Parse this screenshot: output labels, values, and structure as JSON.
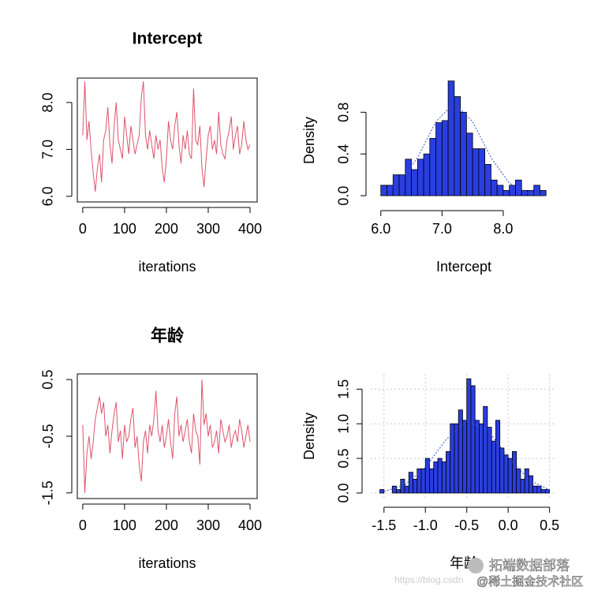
{
  "chart_data": [
    {
      "type": "line",
      "title": "Intercept",
      "x_label": "iterations",
      "color": "#DF536B",
      "x": [
        0,
        5,
        10,
        15,
        20,
        25,
        30,
        35,
        40,
        45,
        50,
        55,
        60,
        65,
        70,
        75,
        80,
        85,
        90,
        95,
        100,
        105,
        110,
        115,
        120,
        125,
        130,
        135,
        140,
        145,
        150,
        155,
        160,
        165,
        170,
        175,
        180,
        185,
        190,
        195,
        200,
        205,
        210,
        215,
        220,
        225,
        230,
        235,
        240,
        245,
        250,
        255,
        260,
        265,
        270,
        275,
        280,
        285,
        290,
        295,
        300,
        305,
        310,
        315,
        320,
        325,
        330,
        335,
        340,
        345,
        350,
        355,
        360,
        365,
        370,
        375,
        380,
        385,
        390,
        395,
        400
      ],
      "values": [
        7.3,
        8.45,
        7.2,
        7.6,
        7.0,
        6.5,
        6.1,
        6.6,
        6.9,
        6.3,
        7.2,
        7.4,
        7.9,
        7.1,
        6.7,
        7.5,
        8.0,
        7.2,
        7.0,
        6.8,
        7.7,
        7.3,
        6.9,
        7.5,
        7.2,
        6.9,
        7.1,
        7.3,
        8.1,
        8.45,
        7.3,
        7.0,
        7.4,
        7.1,
        6.8,
        7.3,
        7.0,
        7.2,
        6.6,
        6.3,
        6.8,
        7.6,
        7.2,
        7.0,
        7.5,
        7.8,
        7.1,
        6.7,
        7.3,
        7.0,
        7.4,
        6.9,
        6.8,
        8.3,
        7.2,
        7.1,
        7.5,
        6.6,
        6.2,
        6.8,
        7.3,
        7.5,
        7.0,
        7.2,
        6.9,
        7.8,
        7.1,
        6.9,
        6.8,
        7.2,
        7.4,
        7.7,
        7.0,
        7.3,
        7.5,
        6.9,
        7.1,
        7.6,
        7.2,
        7.0,
        7.1
      ],
      "xlim": [
        -13,
        417
      ],
      "ylim": [
        5.88,
        8.52
      ],
      "xticks": [
        0,
        100,
        200,
        300,
        400
      ],
      "yticks": [
        {
          "value": 6,
          "label": "6.0"
        },
        {
          "value": 7,
          "label": "7.0"
        },
        {
          "value": 8,
          "label": "8.0"
        }
      ]
    },
    {
      "type": "histogram",
      "x_label": "Intercept",
      "y_label": "Density",
      "color": "#2a3de0",
      "bins": [
        6.0,
        6.1,
        6.2,
        6.3,
        6.4,
        6.5,
        6.6,
        6.7,
        6.8,
        6.9,
        7.0,
        7.1,
        7.2,
        7.3,
        7.4,
        7.5,
        7.6,
        7.7,
        7.8,
        7.9,
        8.0,
        8.1,
        8.2,
        8.3,
        8.4,
        8.5,
        8.6,
        8.7
      ],
      "values": [
        0.1,
        0.1,
        0.2,
        0.2,
        0.35,
        0.25,
        0.35,
        0.4,
        0.55,
        0.7,
        0.72,
        1.1,
        0.95,
        0.8,
        0.6,
        0.45,
        0.45,
        0.3,
        0.15,
        0.1,
        0.05,
        0.1,
        0.15,
        0.05,
        0.05,
        0.1,
        0.05
      ],
      "density_curve": {
        "color": "#3050c8",
        "x": [
          6.0,
          6.3,
          6.6,
          6.9,
          7.2,
          7.5,
          7.8,
          8.1,
          8.4,
          8.7
        ],
        "y": [
          0.025,
          0.12,
          0.365,
          0.71,
          0.887,
          0.71,
          0.365,
          0.12,
          0.025,
          0.003
        ]
      },
      "xlim": [
        5.9,
        8.8
      ],
      "ylim": [
        -0.06,
        1.12
      ],
      "xticks": [
        {
          "value": 6,
          "label": "6.0"
        },
        {
          "value": 7,
          "label": "7.0"
        },
        {
          "value": 8,
          "label": "8.0"
        }
      ],
      "yticks": [
        {
          "value": 0,
          "label": "0.0"
        },
        0.4,
        0.8
      ],
      "grid": false
    },
    {
      "type": "line",
      "title": "年龄",
      "x_label": "iterations",
      "color": "#DF536B",
      "x": [
        0,
        5,
        10,
        15,
        20,
        25,
        30,
        35,
        40,
        45,
        50,
        55,
        60,
        65,
        70,
        75,
        80,
        85,
        90,
        95,
        100,
        105,
        110,
        115,
        120,
        125,
        130,
        135,
        140,
        145,
        150,
        155,
        160,
        165,
        170,
        175,
        180,
        185,
        190,
        195,
        200,
        205,
        210,
        215,
        220,
        225,
        230,
        235,
        240,
        245,
        250,
        255,
        260,
        265,
        270,
        275,
        280,
        285,
        290,
        295,
        300,
        305,
        310,
        315,
        320,
        325,
        330,
        335,
        340,
        345,
        350,
        355,
        360,
        365,
        370,
        375,
        380,
        385,
        390,
        395,
        400
      ],
      "values": [
        -0.3,
        -1.5,
        -0.8,
        -0.5,
        -0.9,
        -0.6,
        -0.2,
        0.0,
        0.2,
        -0.1,
        0.1,
        -0.5,
        -0.3,
        -0.8,
        -0.4,
        -0.1,
        0.1,
        -0.6,
        -0.4,
        -0.9,
        -0.3,
        -0.6,
        -0.5,
        -0.2,
        0.0,
        -0.7,
        -0.5,
        -1.0,
        -1.3,
        -0.6,
        -0.4,
        -0.8,
        -0.3,
        -0.5,
        -0.2,
        0.3,
        -0.4,
        -0.6,
        -0.3,
        -0.7,
        -0.5,
        -0.2,
        -0.6,
        -0.9,
        -0.1,
        0.2,
        -0.5,
        -0.3,
        -0.6,
        -0.4,
        -0.2,
        -0.6,
        -0.8,
        -0.1,
        -0.4,
        -0.5,
        -1.0,
        0.5,
        -0.3,
        -0.1,
        -0.5,
        -0.3,
        -0.7,
        -0.6,
        -0.4,
        -0.8,
        -0.2,
        -0.4,
        -0.6,
        -0.5,
        -0.3,
        -0.7,
        -0.5,
        -0.4,
        -0.6,
        -0.2,
        -0.4,
        -0.7,
        -0.5,
        -0.3,
        -0.6
      ],
      "xlim": [
        -13,
        417
      ],
      "ylim": [
        -1.6,
        0.6
      ],
      "xticks": [
        0,
        100,
        200,
        300,
        400
      ],
      "yticks": [
        -1.5,
        -0.5,
        0.5
      ]
    },
    {
      "type": "histogram",
      "x_label": "年龄",
      "y_label": "Density",
      "color": "#2a3de0",
      "bins": [
        -1.55,
        -1.5,
        -1.45,
        -1.4,
        -1.35,
        -1.3,
        -1.25,
        -1.2,
        -1.15,
        -1.1,
        -1.05,
        -1.0,
        -0.95,
        -0.9,
        -0.85,
        -0.8,
        -0.75,
        -0.7,
        -0.65,
        -0.6,
        -0.55,
        -0.5,
        -0.45,
        -0.4,
        -0.35,
        -0.3,
        -0.25,
        -0.2,
        -0.15,
        -0.1,
        -0.05,
        0.0,
        0.05,
        0.1,
        0.15,
        0.2,
        0.25,
        0.3,
        0.35,
        0.4,
        0.45,
        0.5
      ],
      "values": [
        0.05,
        0,
        0,
        0.1,
        0.05,
        0.2,
        0.1,
        0.3,
        0.2,
        0.35,
        0.35,
        0.5,
        0.35,
        0.45,
        0.5,
        0.45,
        0.6,
        1.0,
        1.0,
        1.2,
        1.05,
        1.65,
        1.55,
        1.05,
        1.0,
        1.25,
        0.95,
        0.75,
        1.05,
        0.65,
        0.55,
        0.5,
        0.6,
        0.35,
        0.2,
        0.35,
        0.25,
        0.1,
        0.1,
        0.05,
        0.05
      ],
      "density_curve": {
        "color": "#3050c8",
        "x": [
          -1.5,
          -1.25,
          -1.0,
          -0.75,
          -0.5,
          -0.25,
          0,
          0.25,
          0.5
        ],
        "y": [
          0.023,
          0.115,
          0.37,
          0.77,
          1.04,
          0.91,
          0.52,
          0.19,
          0.046
        ]
      },
      "xlim": [
        -1.66,
        0.58
      ],
      "ylim": [
        -0.08,
        1.72
      ],
      "xticks": [
        -1.5,
        {
          "value": -1,
          "label": "-1.0"
        },
        -0.5,
        {
          "value": 0,
          "label": "0.0"
        },
        0.5
      ],
      "yticks": [
        {
          "value": 0,
          "label": "0.0"
        },
        0.5,
        {
          "value": 1,
          "label": "1.0"
        },
        1.5
      ],
      "grid": true
    }
  ],
  "watermark": {
    "url": "https://blog.csdn",
    "brand": "拓端数据部落",
    "community": "@稀土掘金技术社区"
  }
}
